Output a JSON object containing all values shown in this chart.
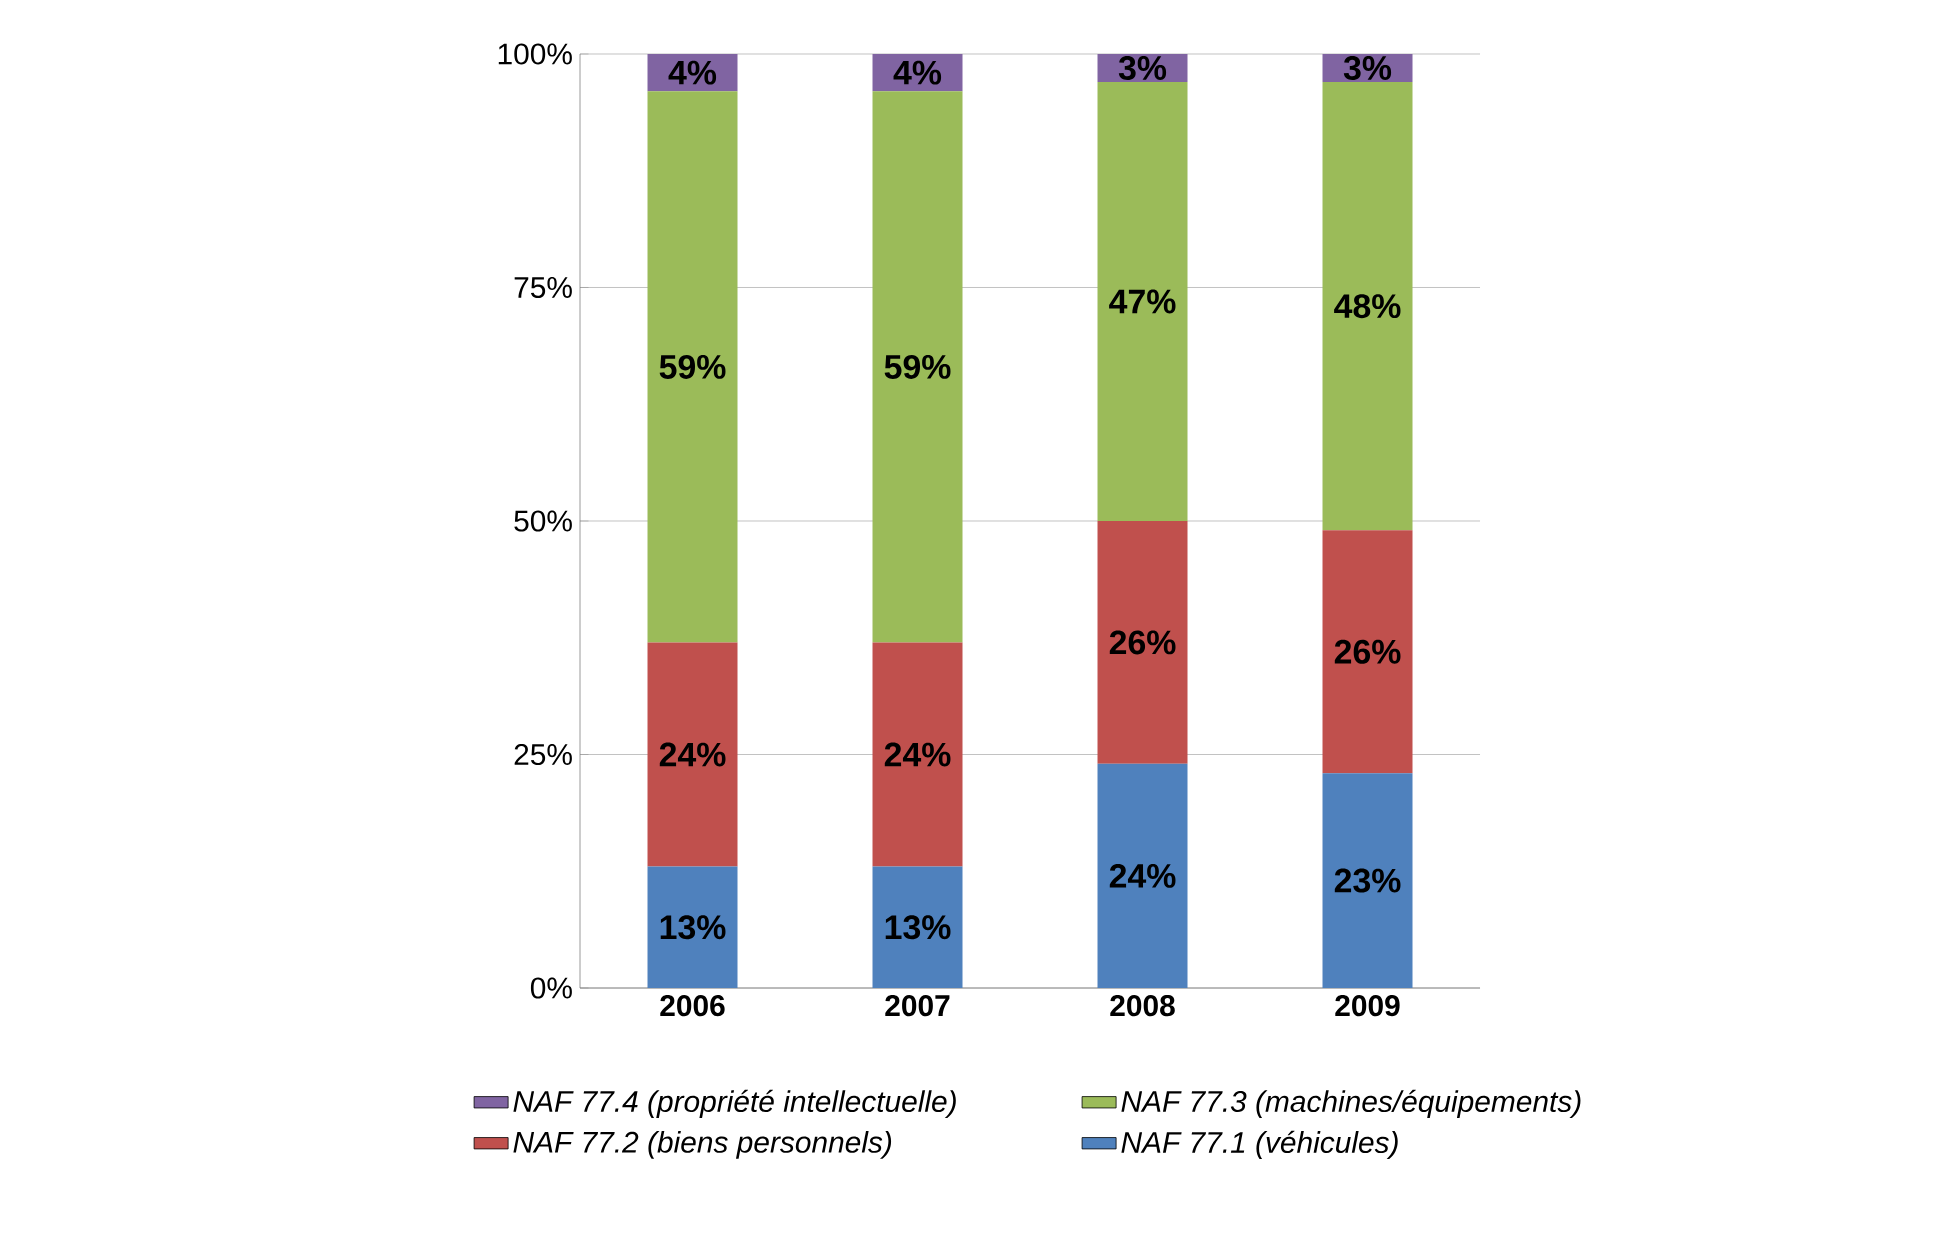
{
  "chart_data": {
    "type": "bar",
    "stacked": true,
    "categories": [
      "2006",
      "2007",
      "2008",
      "2009"
    ],
    "series": [
      {
        "name": "NAF 77.1 (véhicules)",
        "color": "#4f81bd",
        "values": [
          13,
          13,
          24,
          23
        ],
        "value_labels": [
          "13%",
          "13%",
          "24%",
          "23%"
        ]
      },
      {
        "name": "NAF 77.2 (biens personnels)",
        "color": "#c0504d",
        "values": [
          24,
          24,
          26,
          26
        ],
        "value_labels": [
          "24%",
          "24%",
          "26%",
          "26%"
        ]
      },
      {
        "name": "NAF 77.3 (machines/équipements)",
        "color": "#9bbb59",
        "values": [
          59,
          59,
          47,
          48
        ],
        "value_labels": [
          "59%",
          "59%",
          "47%",
          "48%"
        ]
      },
      {
        "name": "NAF 77.4 (propriété intellectuelle)",
        "color": "#8064a2",
        "values": [
          4,
          4,
          3,
          3
        ],
        "value_labels": [
          "4%",
          "4%",
          "3%",
          "3%"
        ]
      }
    ],
    "ylim": [
      0,
      100
    ],
    "yticks": [
      {
        "value": 0,
        "label": "0%"
      },
      {
        "value": 25,
        "label": "25%"
      },
      {
        "value": 50,
        "label": "50%"
      },
      {
        "value": 75,
        "label": "75%"
      },
      {
        "value": 100,
        "label": "100%"
      }
    ],
    "grid": "y",
    "legend": "bottom"
  }
}
